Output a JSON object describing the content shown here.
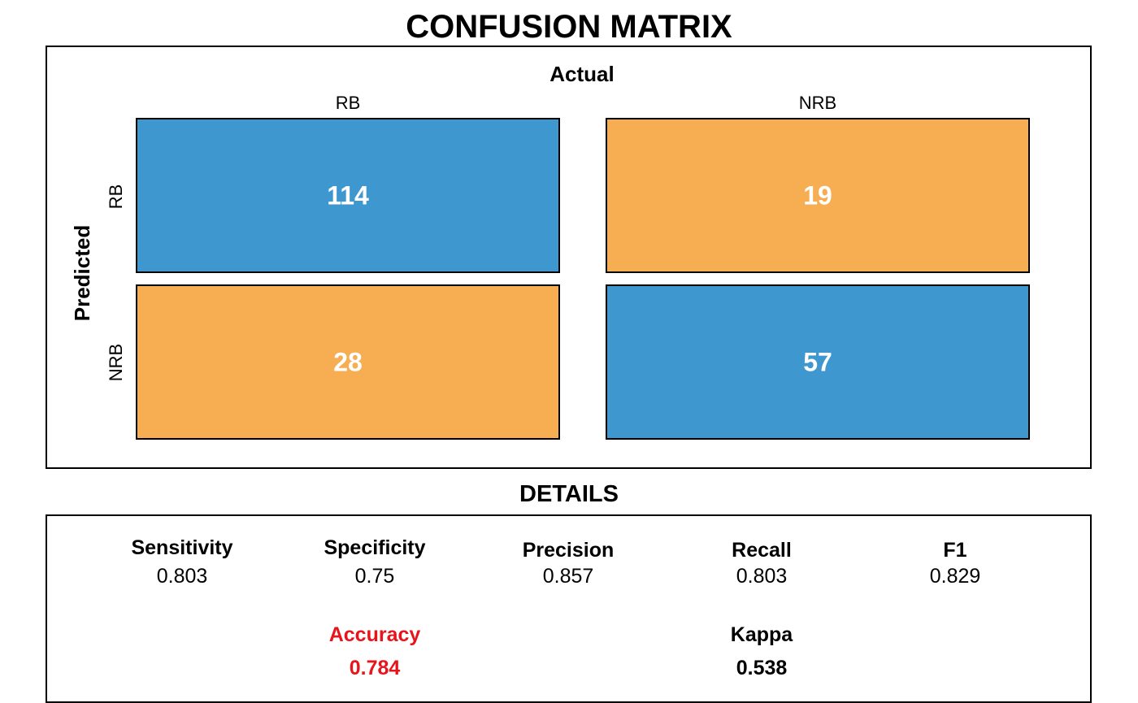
{
  "chart_data": {
    "type": "heatmap",
    "title": "CONFUSION MATRIX",
    "xlabel": "Actual",
    "ylabel": "Predicted",
    "categories": [
      "RB",
      "NRB"
    ],
    "matrix": [
      [
        114,
        19
      ],
      [
        28,
        57
      ]
    ],
    "colors": {
      "correct": "#3f97cf",
      "incorrect": "#f7ad52"
    }
  },
  "details": {
    "title": "DETAILS",
    "metrics": [
      {
        "label": "Sensitivity",
        "value": "0.803"
      },
      {
        "label": "Specificity",
        "value": "0.75"
      },
      {
        "label": "Precision",
        "value": "0.857"
      },
      {
        "label": "Recall",
        "value": "0.803"
      },
      {
        "label": "F1",
        "value": "0.829"
      }
    ],
    "summary": [
      {
        "label": "Accuracy",
        "value": "0.784",
        "color": "#e8141c"
      },
      {
        "label": "Kappa",
        "value": "0.538",
        "color": "#000000"
      }
    ]
  }
}
